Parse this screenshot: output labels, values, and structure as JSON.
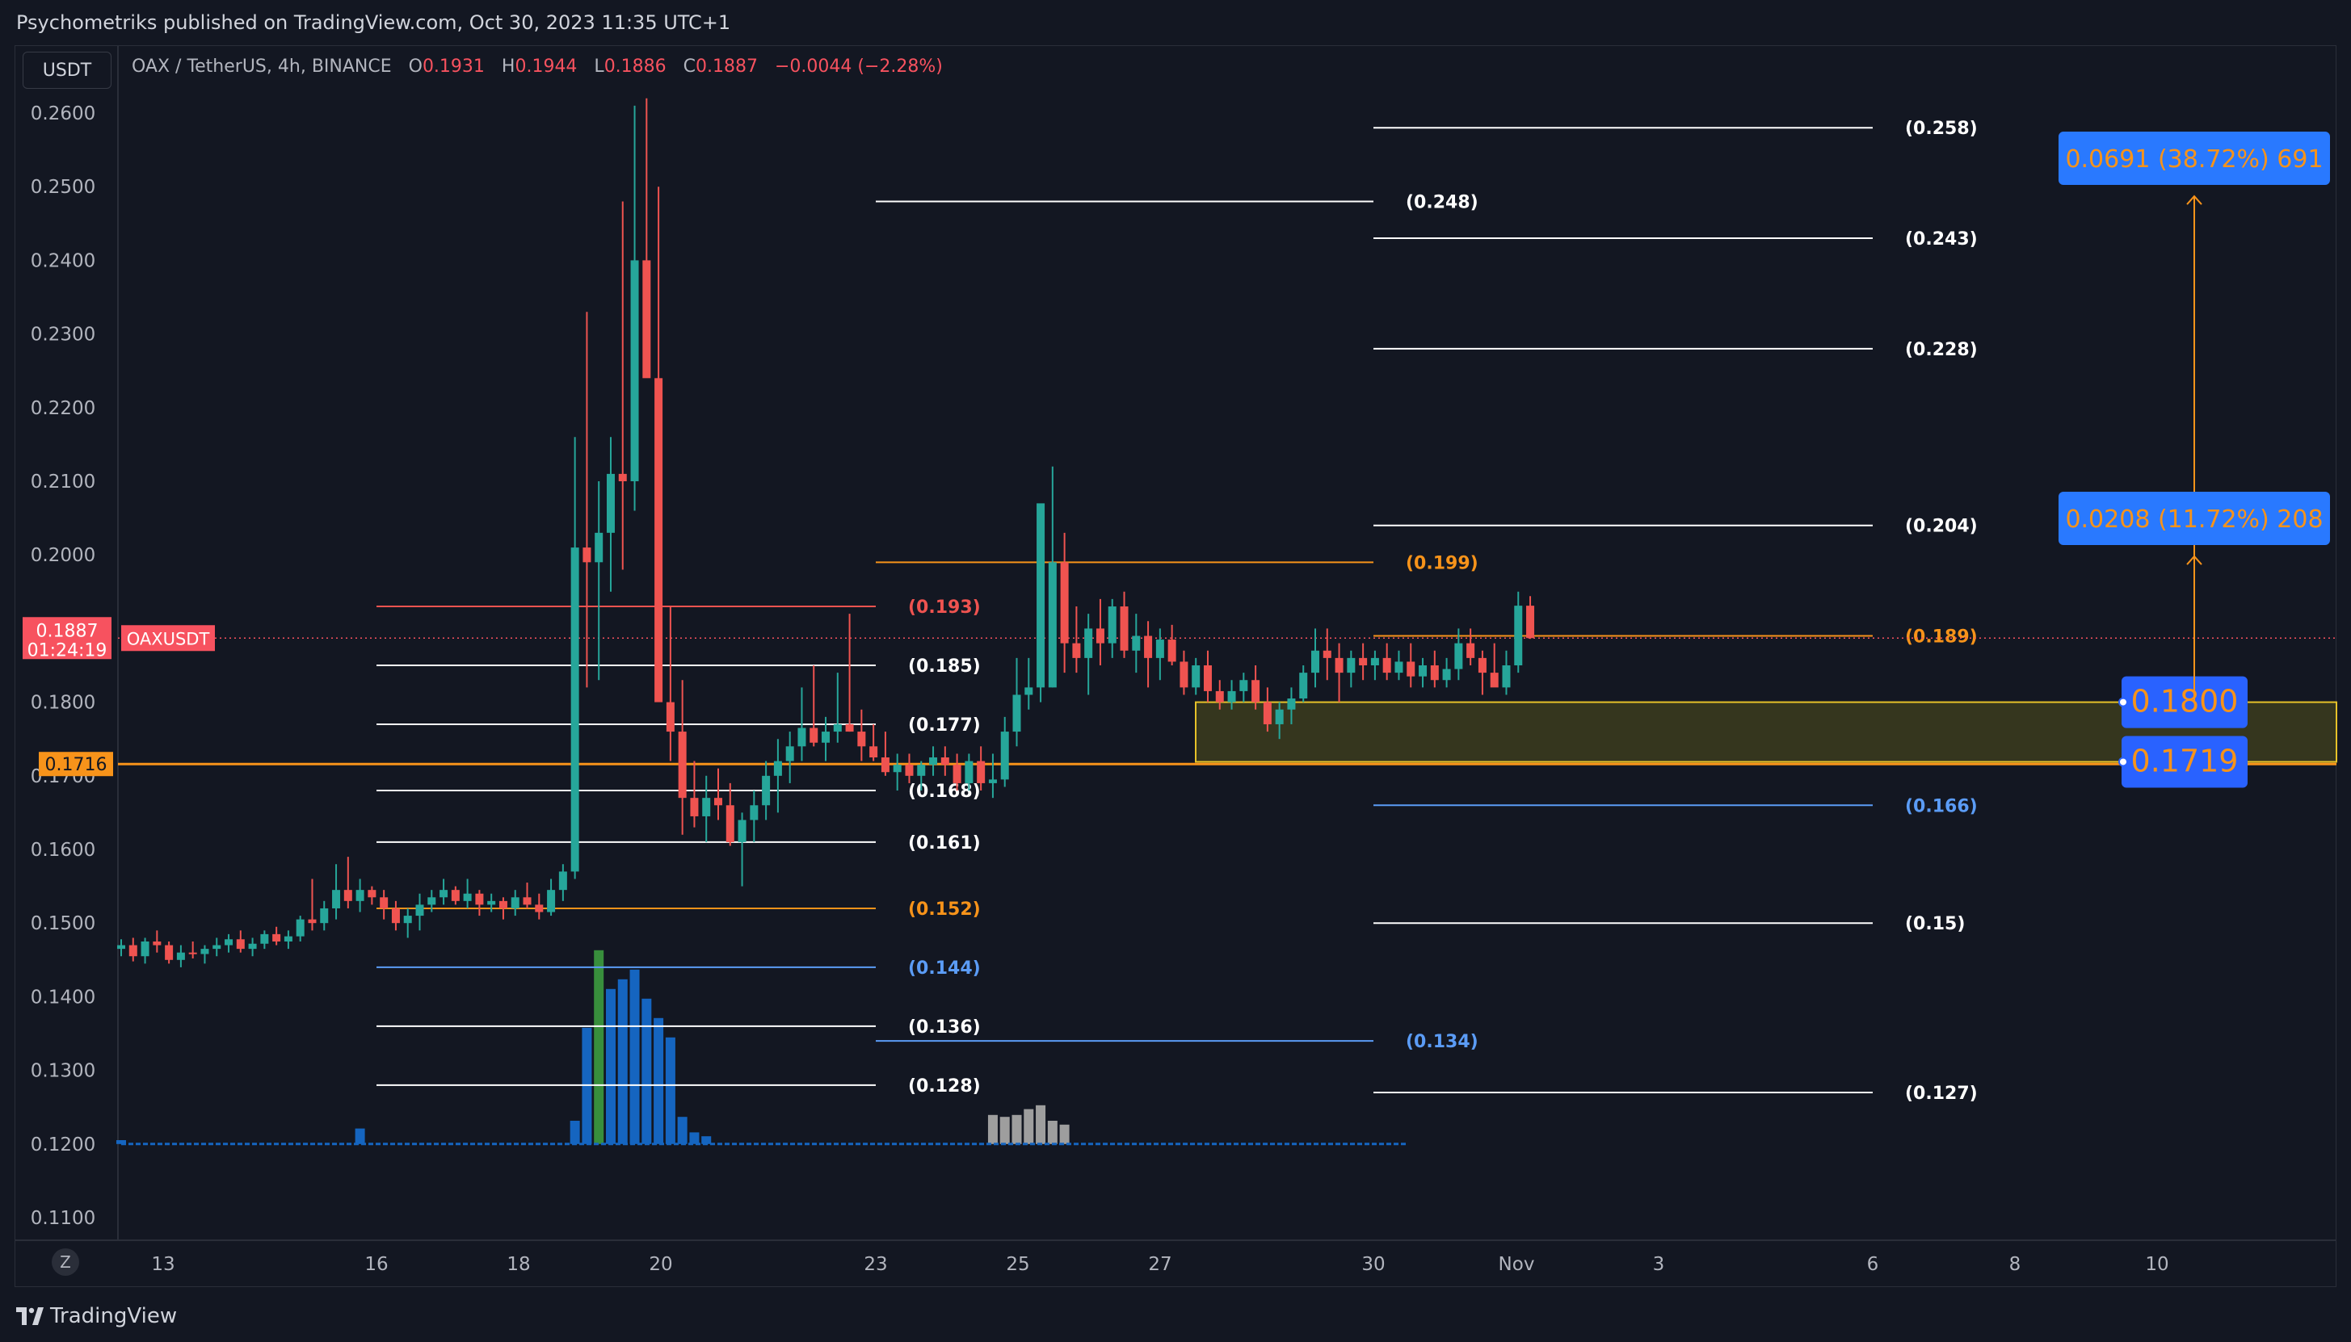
{
  "header": {
    "publisher_line": "Psychometriks published on TradingView.com, Oct 30, 2023 11:35 UTC+1"
  },
  "toolbar": {
    "currency": "USDT",
    "scale_button": "Z"
  },
  "brand": {
    "name": "TradingView"
  },
  "legend": {
    "symbol": "OAX / TetherUS, 4h, BINANCE",
    "open_label": "O",
    "open": "0.1931",
    "high_label": "H",
    "high": "0.1944",
    "low_label": "L",
    "low": "0.1886",
    "close_label": "C",
    "close": "0.1887",
    "change": "−0.0044 (−2.28%)"
  },
  "colors": {
    "up": "#26a69a",
    "down": "#ef5350",
    "background": "#131722",
    "fib_orange": "#f7931a",
    "fib_blue": "#5b9cf6",
    "box_fill": "#3a3a1e",
    "callout_blue": "#2962ff"
  },
  "chart_data": {
    "type": "candlestick",
    "symbol": "OAXUSDT",
    "interval": "4h",
    "y_axis": {
      "min": 0.11,
      "max": 0.264,
      "ticks": [
        "0.2600",
        "0.2500",
        "0.2400",
        "0.2300",
        "0.2200",
        "0.2100",
        "0.2000",
        "0.1900",
        "0.1800",
        "0.1700",
        "0.1600",
        "0.1500",
        "0.1400",
        "0.1300",
        "0.1200",
        "0.1100"
      ]
    },
    "x_axis": {
      "ticks": [
        "13",
        "16",
        "18",
        "20",
        "23",
        "25",
        "27",
        "30",
        "Nov",
        "3",
        "6",
        "8",
        "10"
      ]
    },
    "price_tags": [
      {
        "label": "0.1887",
        "sub": "01:24:19",
        "value": 0.1887,
        "color": "#f7525f",
        "name_label": "OAXUSDT"
      },
      {
        "label": "0.1716",
        "value": 0.1716,
        "color": "#f7931a"
      }
    ],
    "candles_4h": [
      [
        0.1465,
        0.1478,
        0.1455,
        0.147
      ],
      [
        0.147,
        0.148,
        0.1448,
        0.1455
      ],
      [
        0.1455,
        0.148,
        0.1445,
        0.1475
      ],
      [
        0.1475,
        0.149,
        0.146,
        0.147
      ],
      [
        0.147,
        0.1475,
        0.1445,
        0.145
      ],
      [
        0.145,
        0.147,
        0.144,
        0.146
      ],
      [
        0.146,
        0.1475,
        0.1452,
        0.1458
      ],
      [
        0.1458,
        0.147,
        0.1445,
        0.1465
      ],
      [
        0.1465,
        0.148,
        0.1455,
        0.147
      ],
      [
        0.147,
        0.1485,
        0.146,
        0.1478
      ],
      [
        0.1478,
        0.149,
        0.146,
        0.1465
      ],
      [
        0.1465,
        0.148,
        0.1455,
        0.1472
      ],
      [
        0.1472,
        0.149,
        0.1465,
        0.1485
      ],
      [
        0.1485,
        0.1495,
        0.147,
        0.1475
      ],
      [
        0.1475,
        0.149,
        0.1465,
        0.1482
      ],
      [
        0.1482,
        0.151,
        0.1475,
        0.1505
      ],
      [
        0.1505,
        0.156,
        0.149,
        0.15
      ],
      [
        0.15,
        0.153,
        0.149,
        0.152
      ],
      [
        0.152,
        0.158,
        0.1505,
        0.1545
      ],
      [
        0.1545,
        0.159,
        0.152,
        0.153
      ],
      [
        0.153,
        0.156,
        0.1515,
        0.1545
      ],
      [
        0.1545,
        0.155,
        0.1525,
        0.1535
      ],
      [
        0.1535,
        0.1545,
        0.1505,
        0.152
      ],
      [
        0.152,
        0.153,
        0.149,
        0.15
      ],
      [
        0.15,
        0.152,
        0.148,
        0.151
      ],
      [
        0.151,
        0.154,
        0.149,
        0.1525
      ],
      [
        0.1525,
        0.1545,
        0.1515,
        0.1535
      ],
      [
        0.1535,
        0.156,
        0.1525,
        0.1545
      ],
      [
        0.1545,
        0.155,
        0.1525,
        0.153
      ],
      [
        0.153,
        0.156,
        0.152,
        0.154
      ],
      [
        0.154,
        0.1545,
        0.151,
        0.1525
      ],
      [
        0.1525,
        0.154,
        0.1515,
        0.153
      ],
      [
        0.153,
        0.1535,
        0.1505,
        0.152
      ],
      [
        0.152,
        0.1545,
        0.151,
        0.1535
      ],
      [
        0.1535,
        0.1555,
        0.152,
        0.1525
      ],
      [
        0.1525,
        0.154,
        0.1505,
        0.1515
      ],
      [
        0.1515,
        0.156,
        0.151,
        0.1545
      ],
      [
        0.1545,
        0.158,
        0.153,
        0.157
      ],
      [
        0.157,
        0.216,
        0.156,
        0.201
      ],
      [
        0.201,
        0.233,
        0.182,
        0.199
      ],
      [
        0.199,
        0.21,
        0.183,
        0.203
      ],
      [
        0.203,
        0.216,
        0.195,
        0.211
      ],
      [
        0.211,
        0.248,
        0.198,
        0.21
      ],
      [
        0.21,
        0.261,
        0.206,
        0.24
      ],
      [
        0.24,
        0.262,
        0.228,
        0.224
      ],
      [
        0.224,
        0.25,
        0.205,
        0.18
      ],
      [
        0.18,
        0.193,
        0.172,
        0.176
      ],
      [
        0.176,
        0.183,
        0.162,
        0.167
      ],
      [
        0.167,
        0.172,
        0.163,
        0.1645
      ],
      [
        0.1645,
        0.17,
        0.161,
        0.167
      ],
      [
        0.167,
        0.171,
        0.164,
        0.166
      ],
      [
        0.166,
        0.169,
        0.1605,
        0.161
      ],
      [
        0.161,
        0.165,
        0.155,
        0.164
      ],
      [
        0.164,
        0.168,
        0.161,
        0.166
      ],
      [
        0.166,
        0.172,
        0.164,
        0.17
      ],
      [
        0.17,
        0.175,
        0.165,
        0.172
      ],
      [
        0.172,
        0.176,
        0.169,
        0.174
      ],
      [
        0.174,
        0.182,
        0.172,
        0.1765
      ],
      [
        0.1765,
        0.185,
        0.174,
        0.1745
      ],
      [
        0.1745,
        0.178,
        0.172,
        0.176
      ],
      [
        0.176,
        0.184,
        0.1745,
        0.177
      ],
      [
        0.177,
        0.192,
        0.176,
        0.176
      ],
      [
        0.176,
        0.179,
        0.172,
        0.174
      ],
      [
        0.174,
        0.177,
        0.172,
        0.1725
      ],
      [
        0.1725,
        0.176,
        0.17,
        0.1705
      ],
      [
        0.1705,
        0.173,
        0.168,
        0.1715
      ],
      [
        0.1715,
        0.173,
        0.169,
        0.17
      ],
      [
        0.17,
        0.172,
        0.168,
        0.1715
      ],
      [
        0.1715,
        0.174,
        0.17,
        0.1725
      ],
      [
        0.1725,
        0.174,
        0.17,
        0.1715
      ],
      [
        0.1715,
        0.173,
        0.168,
        0.169
      ],
      [
        0.169,
        0.173,
        0.168,
        0.172
      ],
      [
        0.172,
        0.174,
        0.168,
        0.169
      ],
      [
        0.169,
        0.173,
        0.167,
        0.1695
      ],
      [
        0.1695,
        0.178,
        0.1685,
        0.176
      ],
      [
        0.176,
        0.186,
        0.174,
        0.181
      ],
      [
        0.181,
        0.186,
        0.179,
        0.182
      ],
      [
        0.182,
        0.198,
        0.18,
        0.207
      ],
      [
        0.182,
        0.212,
        0.182,
        0.199
      ],
      [
        0.199,
        0.203,
        0.184,
        0.188
      ],
      [
        0.188,
        0.193,
        0.184,
        0.186
      ],
      [
        0.186,
        0.192,
        0.181,
        0.19
      ],
      [
        0.19,
        0.194,
        0.185,
        0.188
      ],
      [
        0.188,
        0.194,
        0.186,
        0.193
      ],
      [
        0.193,
        0.195,
        0.186,
        0.187
      ],
      [
        0.187,
        0.192,
        0.184,
        0.189
      ],
      [
        0.189,
        0.191,
        0.182,
        0.186
      ],
      [
        0.186,
        0.19,
        0.183,
        0.1885
      ],
      [
        0.1885,
        0.1905,
        0.185,
        0.1855
      ],
      [
        0.1855,
        0.187,
        0.181,
        0.182
      ],
      [
        0.182,
        0.186,
        0.181,
        0.185
      ],
      [
        0.185,
        0.187,
        0.18,
        0.1815
      ],
      [
        0.1815,
        0.183,
        0.179,
        0.18
      ],
      [
        0.18,
        0.183,
        0.179,
        0.1815
      ],
      [
        0.1815,
        0.184,
        0.18,
        0.183
      ],
      [
        0.183,
        0.185,
        0.179,
        0.18
      ],
      [
        0.18,
        0.182,
        0.176,
        0.177
      ],
      [
        0.177,
        0.18,
        0.175,
        0.179
      ],
      [
        0.179,
        0.182,
        0.177,
        0.1805
      ],
      [
        0.1805,
        0.185,
        0.18,
        0.184
      ],
      [
        0.184,
        0.19,
        0.182,
        0.187
      ],
      [
        0.187,
        0.19,
        0.183,
        0.186
      ],
      [
        0.186,
        0.188,
        0.18,
        0.184
      ],
      [
        0.184,
        0.187,
        0.182,
        0.186
      ],
      [
        0.186,
        0.188,
        0.183,
        0.185
      ],
      [
        0.185,
        0.187,
        0.183,
        0.186
      ],
      [
        0.186,
        0.188,
        0.183,
        0.184
      ],
      [
        0.184,
        0.187,
        0.183,
        0.1855
      ],
      [
        0.1855,
        0.188,
        0.182,
        0.1835
      ],
      [
        0.1835,
        0.186,
        0.182,
        0.185
      ],
      [
        0.185,
        0.187,
        0.182,
        0.183
      ],
      [
        0.183,
        0.186,
        0.182,
        0.1845
      ],
      [
        0.1845,
        0.19,
        0.183,
        0.188
      ],
      [
        0.188,
        0.19,
        0.185,
        0.186
      ],
      [
        0.186,
        0.187,
        0.181,
        0.184
      ],
      [
        0.184,
        0.188,
        0.183,
        0.182
      ],
      [
        0.182,
        0.187,
        0.181,
        0.185
      ],
      [
        0.185,
        0.195,
        0.184,
        0.1931
      ],
      [
        0.1931,
        0.1944,
        0.1886,
        0.1887
      ]
    ],
    "volume_bars": [
      {
        "i": 0,
        "v": 2
      },
      {
        "i": 20,
        "v": 8
      },
      {
        "i": 38,
        "v": 12
      },
      {
        "i": 39,
        "v": 60
      },
      {
        "i": 40,
        "v": 100
      },
      {
        "i": 41,
        "v": 80
      },
      {
        "i": 42,
        "v": 85
      },
      {
        "i": 43,
        "v": 90
      },
      {
        "i": 44,
        "v": 75
      },
      {
        "i": 45,
        "v": 65
      },
      {
        "i": 46,
        "v": 55
      },
      {
        "i": 47,
        "v": 14
      },
      {
        "i": 48,
        "v": 6
      },
      {
        "i": 49,
        "v": 4
      },
      {
        "i": 73,
        "v": 15
      },
      {
        "i": 74,
        "v": 14
      },
      {
        "i": 75,
        "v": 15
      },
      {
        "i": 76,
        "v": 18
      },
      {
        "i": 77,
        "v": 20
      },
      {
        "i": 78,
        "v": 12
      },
      {
        "i": 79,
        "v": 10
      }
    ],
    "fib_levels": [
      {
        "label": "(0.258)",
        "value": 0.258,
        "color": "#ffffff",
        "x0": "30",
        "x1": "6",
        "side": "right"
      },
      {
        "label": "(0.248)",
        "value": 0.248,
        "color": "#ffffff",
        "x0": "23",
        "x1": "30",
        "side": "right"
      },
      {
        "label": "(0.243)",
        "value": 0.243,
        "color": "#ffffff",
        "x0": "30",
        "x1": "6",
        "side": "right"
      },
      {
        "label": "(0.228)",
        "value": 0.228,
        "color": "#ffffff",
        "x0": "30",
        "x1": "6",
        "side": "right"
      },
      {
        "label": "(0.204)",
        "value": 0.204,
        "color": "#ffffff",
        "x0": "30",
        "x1": "6",
        "side": "right"
      },
      {
        "label": "(0.199)",
        "value": 0.199,
        "color": "#f7931a",
        "x0": "23",
        "x1": "30",
        "side": "right"
      },
      {
        "label": "(0.193)",
        "value": 0.193,
        "color": "#ef5350",
        "x0": "16",
        "x1": "23",
        "side": "right"
      },
      {
        "label": "(0.189)",
        "value": 0.189,
        "color": "#f7931a",
        "x0": "30",
        "x1": "6",
        "side": "right"
      },
      {
        "label": "(0.185)",
        "value": 0.185,
        "color": "#ffffff",
        "x0": "16",
        "x1": "23",
        "side": "right"
      },
      {
        "label": "(0.177)",
        "value": 0.177,
        "color": "#ffffff",
        "x0": "16",
        "x1": "23",
        "side": "right"
      },
      {
        "label": "(0.168)",
        "value": 0.168,
        "color": "#ffffff",
        "x0": "16",
        "x1": "23",
        "side": "right"
      },
      {
        "label": "(0.166)",
        "value": 0.166,
        "color": "#5b9cf6",
        "x0": "30",
        "x1": "6",
        "side": "right"
      },
      {
        "label": "(0.161)",
        "value": 0.161,
        "color": "#ffffff",
        "x0": "16",
        "x1": "23",
        "side": "right"
      },
      {
        "label": "(0.152)",
        "value": 0.152,
        "color": "#f7931a",
        "x0": "16",
        "x1": "23",
        "side": "right"
      },
      {
        "label": "(0.15)",
        "value": 0.15,
        "color": "#ffffff",
        "x0": "30",
        "x1": "6",
        "side": "right"
      },
      {
        "label": "(0.144)",
        "value": 0.144,
        "color": "#5b9cf6",
        "x0": "16",
        "x1": "23",
        "side": "right"
      },
      {
        "label": "(0.136)",
        "value": 0.136,
        "color": "#ffffff",
        "x0": "16",
        "x1": "23",
        "side": "right"
      },
      {
        "label": "(0.134)",
        "value": 0.134,
        "color": "#5b9cf6",
        "x0": "23",
        "x1": "30",
        "side": "right"
      },
      {
        "label": "(0.128)",
        "value": 0.128,
        "color": "#ffffff",
        "x0": "16",
        "x1": "23",
        "side": "right"
      },
      {
        "label": "(0.127)",
        "value": 0.127,
        "color": "#ffffff",
        "x0": "30",
        "x1": "6",
        "side": "right"
      }
    ],
    "zone": {
      "top": 0.18,
      "bottom": 0.1719,
      "top_label": "0.1800",
      "bottom_label": "0.1719"
    },
    "callouts": [
      {
        "text": "0.0691 (38.72%) 691",
        "target": 0.2487
      },
      {
        "text": "0.0208 (11.72%) 208",
        "target": 0.1998
      }
    ]
  }
}
